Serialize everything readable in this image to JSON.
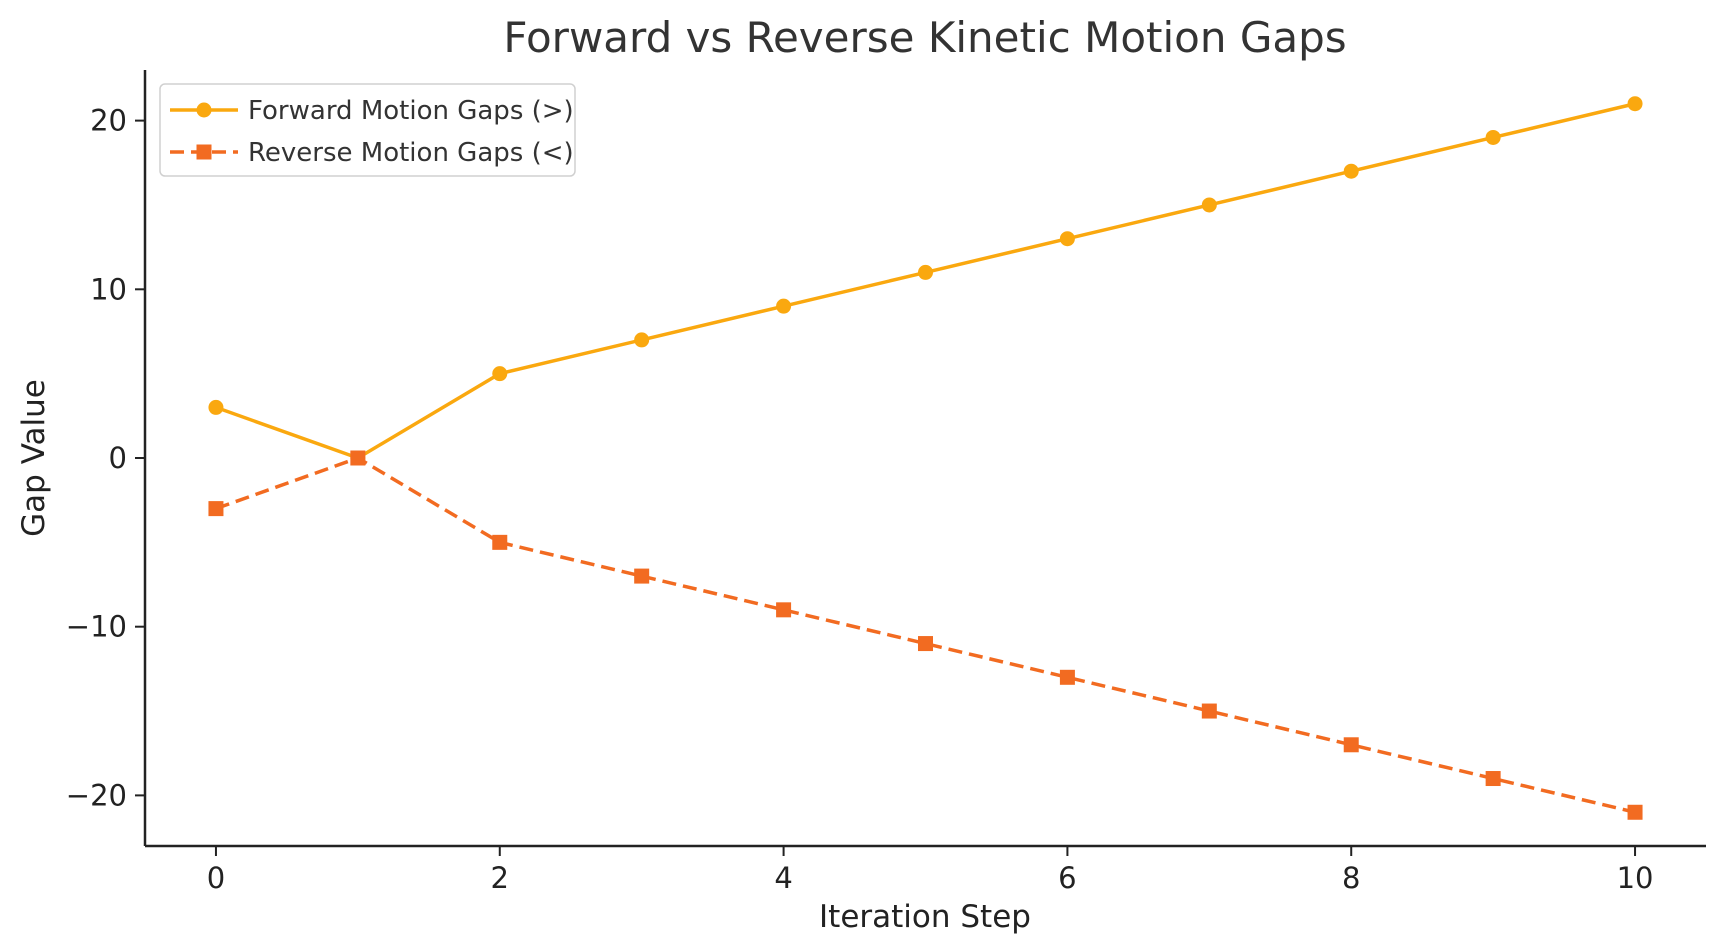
{
  "chart_data": {
    "type": "line",
    "title": "Forward vs Reverse Kinetic Motion Gaps",
    "xlabel": "Iteration Step",
    "ylabel": "Gap Value",
    "x": [
      0,
      1,
      2,
      3,
      4,
      5,
      6,
      7,
      8,
      9,
      10
    ],
    "xlim": [
      -0.5,
      10.5
    ],
    "ylim": [
      -23,
      23
    ],
    "xticks": [
      0,
      2,
      4,
      6,
      8,
      10
    ],
    "yticks": [
      -20,
      -10,
      0,
      10,
      20
    ],
    "xtick_labels": [
      "0",
      "2",
      "4",
      "6",
      "8",
      "10"
    ],
    "ytick_labels": [
      "−20",
      "−10",
      "0",
      "10",
      "20"
    ],
    "grid": false,
    "legend_position": "top-left",
    "series": [
      {
        "name": "Forward Motion Gaps (>)",
        "values": [
          3,
          0,
          5,
          7,
          9,
          11,
          13,
          15,
          17,
          19,
          21
        ],
        "color": "#FAA80F",
        "line_style": "solid",
        "marker": "circle"
      },
      {
        "name": "Reverse Motion Gaps (<)",
        "values": [
          -3,
          0,
          -5,
          -7,
          -9,
          -11,
          -13,
          -15,
          -17,
          -19,
          -21
        ],
        "color": "#F26B21",
        "line_style": "dashed",
        "marker": "square"
      }
    ]
  }
}
